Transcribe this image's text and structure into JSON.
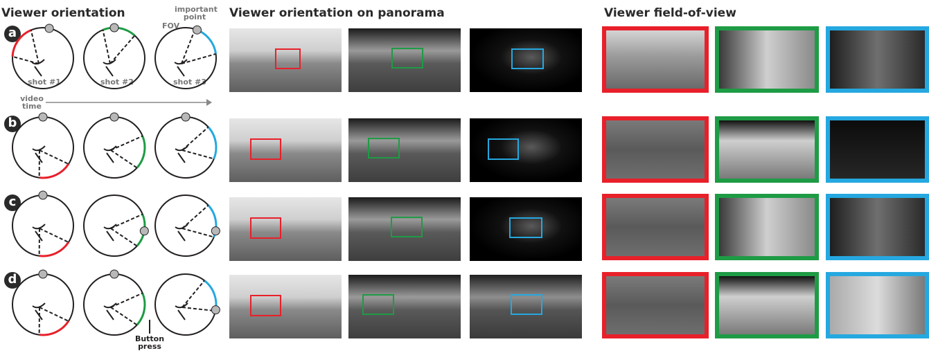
{
  "headers": {
    "orientation": "Viewer orientation",
    "panorama": "Viewer orientation on panorama",
    "fov": "Viewer field-of-view"
  },
  "row_labels": [
    "a",
    "b",
    "c",
    "d"
  ],
  "annotations": {
    "important_point": "important point",
    "fov": "FOV",
    "shots": [
      "shot #1",
      "shot #2",
      "shot #3"
    ],
    "video_time": "video time",
    "button_press": "Button press"
  },
  "colors": {
    "shot1": "#e8202a",
    "shot2": "#1e9b45",
    "shot3": "#25a8e0",
    "point": "#b8b8b8",
    "ink": "#231f20"
  },
  "icons": [
    "important-point-icon",
    "viewing-direction-icon",
    "time-arrow-icon"
  ]
}
